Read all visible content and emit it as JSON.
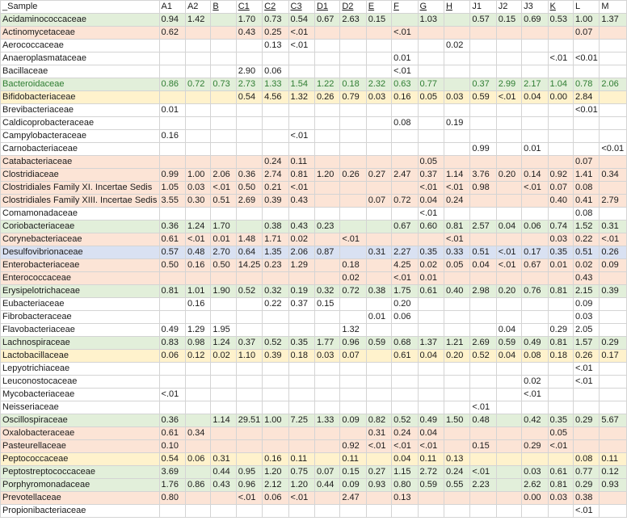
{
  "header": {
    "sample": "_Sample",
    "cols": [
      {
        "label": "A1",
        "link": false
      },
      {
        "label": "A2",
        "link": false
      },
      {
        "label": "B",
        "link": true
      },
      {
        "label": "C1",
        "link": true
      },
      {
        "label": "C2",
        "link": true
      },
      {
        "label": "C3",
        "link": true
      },
      {
        "label": "D1",
        "link": true
      },
      {
        "label": "D2",
        "link": true
      },
      {
        "label": "E",
        "link": true
      },
      {
        "label": "F",
        "link": true
      },
      {
        "label": "G",
        "link": true
      },
      {
        "label": "H",
        "link": true
      },
      {
        "label": "J1",
        "link": false
      },
      {
        "label": "J2",
        "link": false
      },
      {
        "label": "J3",
        "link": false
      },
      {
        "label": "K",
        "link": true
      },
      {
        "label": "L",
        "link": false
      },
      {
        "label": "M",
        "link": false
      }
    ]
  },
  "rows": [
    {
      "name": "Acidaminococcaceae",
      "color": "g",
      "v": [
        "0.94",
        "1.42",
        "",
        "1.70",
        "0.73",
        "0.54",
        "0.67",
        "2.63",
        "0.15",
        "",
        "1.03",
        "",
        "0.57",
        "0.15",
        "0.69",
        "0.53",
        "1.00",
        "1.37"
      ]
    },
    {
      "name": "Actinomycetaceae",
      "color": "o",
      "v": [
        "0.62",
        "",
        "",
        "0.43",
        "0.25",
        "<.01",
        "",
        "",
        "",
        "<.01",
        "",
        "",
        "",
        "",
        "",
        "",
        "0.07",
        ""
      ]
    },
    {
      "name": "Aerococcaceae",
      "color": "w",
      "v": [
        "",
        "",
        "",
        "",
        "0.13",
        "<.01",
        "",
        "",
        "",
        "",
        "",
        "0.02",
        "",
        "",
        "",
        "",
        "",
        ""
      ]
    },
    {
      "name": "Anaeroplasmataceae",
      "color": "w",
      "v": [
        "",
        "",
        "",
        "",
        "",
        "",
        "",
        "",
        "",
        "0.01",
        "",
        "",
        "",
        "",
        "",
        "<.01",
        "<0.01",
        ""
      ]
    },
    {
      "name": "Bacillaceae",
      "color": "w",
      "v": [
        "",
        "",
        "",
        "2.90",
        "0.06",
        "",
        "",
        "",
        "",
        "<.01",
        "",
        "",
        "",
        "",
        "",
        "",
        "",
        ""
      ]
    },
    {
      "name": "Bacteroidaceae",
      "color": "g",
      "green": true,
      "v": [
        "0.86",
        "0.72",
        "0.73",
        "2.73",
        "1.33",
        "1.54",
        "1.22",
        "0.18",
        "2.32",
        "0.63",
        "0.77",
        "",
        "0.37",
        "2.99",
        "2.17",
        "1.04",
        "0.78",
        "2.06"
      ]
    },
    {
      "name": "Bifidobacteriaceae",
      "color": "y",
      "v": [
        "",
        "",
        "",
        "0.54",
        "4.56",
        "1.32",
        "0.26",
        "0.79",
        "0.03",
        "0.16",
        "0.05",
        "0.03",
        "0.59",
        "<.01",
        "0.04",
        "0.00",
        "2.84",
        ""
      ]
    },
    {
      "name": "Brevibacteriaceae",
      "color": "w",
      "v": [
        "0.01",
        "",
        "",
        "",
        "",
        "",
        "",
        "",
        "",
        "",
        "",
        "",
        "",
        "",
        "",
        "",
        "<0.01",
        ""
      ]
    },
    {
      "name": "Caldicoprobacteraceae",
      "color": "w",
      "v": [
        "",
        "",
        "",
        "",
        "",
        "",
        "",
        "",
        "",
        "0.08",
        "",
        "0.19",
        "",
        "",
        "",
        "",
        "",
        ""
      ]
    },
    {
      "name": "Campylobacteraceae",
      "color": "w",
      "v": [
        "0.16",
        "",
        "",
        "",
        "",
        "<.01",
        "",
        "",
        "",
        "",
        "",
        "",
        "",
        "",
        "",
        "",
        "",
        ""
      ]
    },
    {
      "name": "Carnobacteriaceae",
      "color": "w",
      "v": [
        "",
        "",
        "",
        "",
        "",
        "",
        "",
        "",
        "",
        "",
        "",
        "",
        "0.99",
        "",
        "0.01",
        "",
        "",
        "<0.01"
      ]
    },
    {
      "name": "Catabacteriaceae",
      "color": "o",
      "v": [
        "",
        "",
        "",
        "",
        "0.24",
        "0.11",
        "",
        "",
        "",
        "",
        "0.05",
        "",
        "",
        "",
        "",
        "",
        "0.07",
        ""
      ]
    },
    {
      "name": "Clostridiaceae",
      "color": "o",
      "v": [
        "0.99",
        "1.00",
        "2.06",
        "0.36",
        "2.74",
        "0.81",
        "1.20",
        "0.26",
        "0.27",
        "2.47",
        "0.37",
        "1.14",
        "3.76",
        "0.20",
        "0.14",
        "0.92",
        "1.41",
        "0.34"
      ]
    },
    {
      "name": "Clostridiales Family XI. Incertae Sedis",
      "color": "o",
      "v": [
        "1.05",
        "0.03",
        "<.01",
        "0.50",
        "0.21",
        "<.01",
        "",
        "",
        "",
        "",
        "<.01",
        "<.01",
        "0.98",
        "",
        "<.01",
        "0.07",
        "0.08",
        ""
      ]
    },
    {
      "name": "Clostridiales Family XIII. Incertae Sedis",
      "color": "o",
      "v": [
        "3.55",
        "0.30",
        "0.51",
        "2.69",
        "0.39",
        "0.43",
        "",
        "",
        "0.07",
        "0.72",
        "0.04",
        "0.24",
        "",
        "",
        "",
        "0.40",
        "0.41",
        "2.79"
      ]
    },
    {
      "name": "Comamonadaceae",
      "color": "w",
      "v": [
        "",
        "",
        "",
        "",
        "",
        "",
        "",
        "",
        "",
        "",
        "<.01",
        "",
        "",
        "",
        "",
        "",
        "0.08",
        ""
      ]
    },
    {
      "name": "Coriobacteriaceae",
      "color": "g",
      "v": [
        "0.36",
        "1.24",
        "1.70",
        "",
        "0.38",
        "0.43",
        "0.23",
        "",
        "",
        "0.67",
        "0.60",
        "0.81",
        "2.57",
        "0.04",
        "0.06",
        "0.74",
        "1.52",
        "0.31"
      ]
    },
    {
      "name": "Corynebacteriaceae",
      "color": "o",
      "v": [
        "0.61",
        "<.01",
        "0.01",
        "1.48",
        "1.71",
        "0.02",
        "",
        "<.01",
        "",
        "",
        "",
        "<.01",
        "",
        "",
        "",
        "0.03",
        "0.22",
        "<.01"
      ]
    },
    {
      "name": "Desulfovibrionaceae",
      "color": "b",
      "v": [
        "0.57",
        "0.48",
        "2.70",
        "0.64",
        "1.35",
        "2.06",
        "0.87",
        "",
        "0.31",
        "2.27",
        "0.35",
        "0.33",
        "0.51",
        "<.01",
        "0.17",
        "0.35",
        "0.51",
        "0.26"
      ]
    },
    {
      "name": "Enterobacteriaceae",
      "color": "o",
      "v": [
        "0.50",
        "0.16",
        "0.50",
        "14.25",
        "0.23",
        "1.29",
        "",
        "0.18",
        "",
        "4.25",
        "0.02",
        "0.05",
        "0.04",
        "<.01",
        "0.67",
        "0.01",
        "0.02",
        "0.09"
      ]
    },
    {
      "name": "Enterococcaceae",
      "color": "o",
      "v": [
        "",
        "",
        "",
        "",
        "",
        "",
        "",
        "0.02",
        "",
        "<.01",
        "0.01",
        "",
        "",
        "",
        "",
        "",
        "0.43",
        ""
      ]
    },
    {
      "name": "Erysipelotrichaceae",
      "color": "g",
      "v": [
        "0.81",
        "1.01",
        "1.90",
        "0.52",
        "0.32",
        "0.19",
        "0.32",
        "0.72",
        "0.38",
        "1.75",
        "0.61",
        "0.40",
        "2.98",
        "0.20",
        "0.76",
        "0.81",
        "2.15",
        "0.39"
      ]
    },
    {
      "name": "Eubacteriaceae",
      "color": "w",
      "v": [
        "",
        "0.16",
        "",
        "",
        "0.22",
        "0.37",
        "0.15",
        "",
        "",
        "0.20",
        "",
        "",
        "",
        "",
        "",
        "",
        "0.09",
        ""
      ]
    },
    {
      "name": "Fibrobacteraceae",
      "color": "w",
      "v": [
        "",
        "",
        "",
        "",
        "",
        "",
        "",
        "",
        "0.01",
        "0.06",
        "",
        "",
        "",
        "",
        "",
        "",
        "0.03",
        ""
      ]
    },
    {
      "name": "Flavobacteriaceae",
      "color": "w",
      "v": [
        "0.49",
        "1.29",
        "1.95",
        "",
        "",
        "",
        "",
        "1.32",
        "",
        "",
        "",
        "",
        "",
        "0.04",
        "",
        "0.29",
        "2.05",
        ""
      ]
    },
    {
      "name": "Lachnospiraceae",
      "color": "g",
      "v": [
        "0.83",
        "0.98",
        "1.24",
        "0.37",
        "0.52",
        "0.35",
        "1.77",
        "0.96",
        "0.59",
        "0.68",
        "1.37",
        "1.21",
        "2.69",
        "0.59",
        "0.49",
        "0.81",
        "1.57",
        "0.29"
      ]
    },
    {
      "name": "Lactobacillaceae",
      "color": "y",
      "v": [
        "0.06",
        "0.12",
        "0.02",
        "1.10",
        "0.39",
        "0.18",
        "0.03",
        "0.07",
        "",
        "0.61",
        "0.04",
        "0.20",
        "0.52",
        "0.04",
        "0.08",
        "0.18",
        "0.26",
        "0.17"
      ]
    },
    {
      "name": "Lepyotrichiaceae",
      "color": "w",
      "v": [
        "",
        "",
        "",
        "",
        "",
        "",
        "",
        "",
        "",
        "",
        "",
        "",
        "",
        "",
        "",
        "",
        "<.01",
        ""
      ]
    },
    {
      "name": "Leuconostocaceae",
      "color": "w",
      "v": [
        "",
        "",
        "",
        "",
        "",
        "",
        "",
        "",
        "",
        "",
        "",
        "",
        "",
        "",
        "0.02",
        "",
        "<.01",
        ""
      ]
    },
    {
      "name": "Mycobacteriaceae",
      "color": "w",
      "v": [
        "<.01",
        "",
        "",
        "",
        "",
        "",
        "",
        "",
        "",
        "",
        "",
        "",
        "",
        "",
        "<.01",
        "",
        "",
        ""
      ]
    },
    {
      "name": "Neisseriaceae",
      "color": "w",
      "v": [
        "",
        "",
        "",
        "",
        "",
        "",
        "",
        "",
        "",
        "",
        "",
        "",
        "<.01",
        "",
        "",
        "",
        "",
        ""
      ]
    },
    {
      "name": "Oscillospiraceae",
      "color": "g",
      "v": [
        "0.36",
        "",
        "1.14",
        "29.51",
        "1.00",
        "7.25",
        "1.33",
        "0.09",
        "0.82",
        "0.52",
        "0.49",
        "1.50",
        "0.48",
        "",
        "0.42",
        "0.35",
        "0.29",
        "5.67"
      ]
    },
    {
      "name": "Oxalobacteraceae",
      "color": "o",
      "v": [
        "0.61",
        "0.34",
        "",
        "",
        "",
        "",
        "",
        "",
        "0.31",
        "0.24",
        "0.04",
        "",
        "",
        "",
        "",
        "0.05",
        "",
        ""
      ]
    },
    {
      "name": "Pasteurellaceae",
      "color": "o",
      "v": [
        "0.10",
        "",
        "",
        "",
        "",
        "",
        "",
        "0.92",
        "<.01",
        "<.01",
        "<.01",
        "",
        "0.15",
        "",
        "0.29",
        "<.01",
        "",
        ""
      ]
    },
    {
      "name": "Peptococcaceae",
      "color": "y",
      "v": [
        "0.54",
        "0.06",
        "0.31",
        "",
        "0.16",
        "0.11",
        "",
        "0.11",
        "",
        "0.04",
        "0.11",
        "0.13",
        "",
        "",
        "",
        "",
        "0.08",
        "0.11"
      ]
    },
    {
      "name": "Peptostreptococcaceae",
      "color": "g",
      "v": [
        "3.69",
        "",
        "0.44",
        "0.95",
        "1.20",
        "0.75",
        "0.07",
        "0.15",
        "0.27",
        "1.15",
        "2.72",
        "0.24",
        "<.01",
        "",
        "0.03",
        "0.61",
        "0.77",
        "0.12"
      ]
    },
    {
      "name": "Porphyromonadaceae",
      "color": "g",
      "v": [
        "1.76",
        "0.86",
        "0.43",
        "0.96",
        "2.12",
        "1.20",
        "0.44",
        "0.09",
        "0.93",
        "0.80",
        "0.59",
        "0.55",
        "2.23",
        "",
        "2.62",
        "0.81",
        "0.29",
        "0.93"
      ]
    },
    {
      "name": "Prevotellaceae",
      "color": "o",
      "v": [
        "0.80",
        "",
        "",
        "<.01",
        "0.06",
        "<.01",
        "",
        "2.47",
        "",
        "0.13",
        "",
        "",
        "",
        "",
        "0.00",
        "0.03",
        "0.38",
        ""
      ]
    },
    {
      "name": "Propionibacteriaceae",
      "color": "w",
      "v": [
        "",
        "",
        "",
        "",
        "",
        "",
        "",
        "",
        "",
        "",
        "",
        "",
        "",
        "",
        "",
        "",
        "<.01",
        ""
      ]
    }
  ]
}
